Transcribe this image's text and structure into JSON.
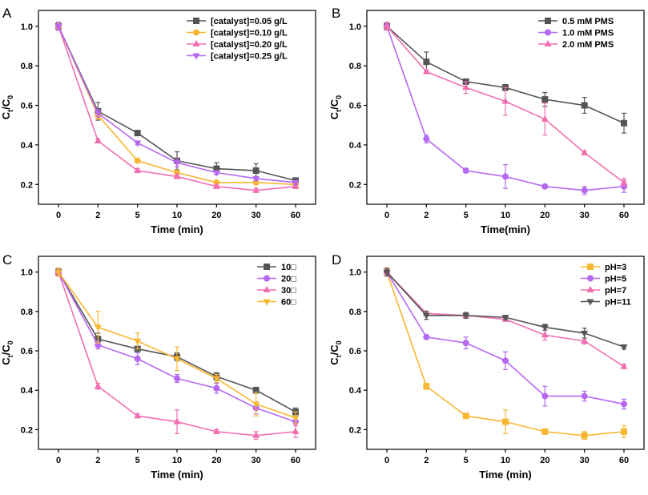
{
  "chart_data": [
    {
      "panel_label": "A",
      "type": "line",
      "xlabel": "Time (min)",
      "ylabel_main": "C",
      "ylabel_sub1": "t",
      "ylabel_mid": "/C",
      "ylabel_sub2": "0",
      "categories": [
        "0",
        "2",
        "5",
        "10",
        "20",
        "30",
        "60"
      ],
      "ylim": [
        0.1,
        1.08
      ],
      "yticks": [
        "0.2",
        "0.4",
        "0.6",
        "0.8",
        "1.0"
      ],
      "legend_position": "top-right",
      "series": [
        {
          "name": "[catalyst]=0.05 g/L",
          "color": "#555555",
          "marker": "square",
          "values": [
            1.0,
            0.57,
            0.46,
            0.32,
            0.28,
            0.27,
            0.22
          ],
          "errors": [
            0.02,
            0.045,
            0.01,
            0.045,
            0.03,
            0.035,
            0.01
          ]
        },
        {
          "name": "[catalyst]=0.10 g/L",
          "color": "#f7b733",
          "marker": "circle",
          "values": [
            1.0,
            0.55,
            0.32,
            0.26,
            0.21,
            0.21,
            0.2
          ],
          "errors": [
            0.02,
            0.02,
            0.01,
            0.01,
            0.01,
            0.01,
            0.01
          ]
        },
        {
          "name": "[catalyst]=0.20 g/L",
          "color": "#f06fb0",
          "marker": "triangle-up",
          "values": [
            1.0,
            0.42,
            0.27,
            0.24,
            0.19,
            0.17,
            0.19
          ],
          "errors": [
            0.02,
            0.01,
            0.01,
            0.01,
            0.01,
            0.01,
            0.01
          ]
        },
        {
          "name": "[catalyst]=0.25 g/L",
          "color": "#b668f0",
          "marker": "triangle-down",
          "values": [
            1.0,
            0.56,
            0.41,
            0.31,
            0.26,
            0.23,
            0.21
          ],
          "errors": [
            0.02,
            0.02,
            0.01,
            0.02,
            0.01,
            0.01,
            0.01
          ]
        }
      ]
    },
    {
      "panel_label": "B",
      "type": "line",
      "xlabel": "Time(min)",
      "ylabel_main": "C",
      "ylabel_sub1": "t",
      "ylabel_mid": "/C",
      "ylabel_sub2": "0",
      "categories": [
        "0",
        "2",
        "5",
        "10",
        "20",
        "30",
        "60"
      ],
      "ylim": [
        0.1,
        1.08
      ],
      "yticks": [
        "0.2",
        "0.4",
        "0.6",
        "0.8",
        "1.0"
      ],
      "legend_position": "top-right",
      "series": [
        {
          "name": "0.5 mM PMS",
          "color": "#555555",
          "marker": "square",
          "values": [
            1.0,
            0.82,
            0.72,
            0.69,
            0.63,
            0.6,
            0.51
          ],
          "errors": [
            0.02,
            0.05,
            0.01,
            0.015,
            0.035,
            0.04,
            0.05
          ]
        },
        {
          "name": "1.0 mM PMS",
          "color": "#b668f0",
          "marker": "circle",
          "values": [
            1.0,
            0.43,
            0.27,
            0.24,
            0.19,
            0.17,
            0.19
          ],
          "errors": [
            0.02,
            0.02,
            0.01,
            0.06,
            0.01,
            0.02,
            0.03
          ]
        },
        {
          "name": "2.0 mM PMS",
          "color": "#f06fb0",
          "marker": "triangle-up",
          "values": [
            1.0,
            0.77,
            0.69,
            0.62,
            0.53,
            0.36,
            0.21
          ],
          "errors": [
            0.02,
            0.01,
            0.03,
            0.07,
            0.08,
            0.01,
            0.02
          ]
        }
      ]
    },
    {
      "panel_label": "C",
      "type": "line",
      "xlabel": "Time (min)",
      "ylabel_main": "C",
      "ylabel_sub1": "t",
      "ylabel_mid": "/C",
      "ylabel_sub2": "0",
      "categories": [
        "0",
        "2",
        "5",
        "10",
        "20",
        "30",
        "60"
      ],
      "ylim": [
        0.1,
        1.08
      ],
      "yticks": [
        "0.2",
        "0.4",
        "0.6",
        "0.8",
        "1.0"
      ],
      "legend_position": "top-right",
      "series": [
        {
          "name": "10□",
          "color": "#555555",
          "marker": "square",
          "values": [
            1.0,
            0.66,
            0.61,
            0.57,
            0.47,
            0.4,
            0.29
          ],
          "errors": [
            0.02,
            0.03,
            0.01,
            0.02,
            0.02,
            0.015,
            0.02
          ]
        },
        {
          "name": "20□",
          "color": "#b668f0",
          "marker": "circle",
          "values": [
            1.0,
            0.63,
            0.56,
            0.46,
            0.41,
            0.31,
            0.24
          ],
          "errors": [
            0.02,
            0.02,
            0.03,
            0.02,
            0.025,
            0.03,
            0.02
          ]
        },
        {
          "name": "30□",
          "color": "#f06fb0",
          "marker": "triangle-up",
          "values": [
            1.0,
            0.42,
            0.27,
            0.24,
            0.19,
            0.17,
            0.19
          ],
          "errors": [
            0.02,
            0.015,
            0.01,
            0.06,
            0.01,
            0.02,
            0.03
          ]
        },
        {
          "name": "60□",
          "color": "#f7b733",
          "marker": "triangle-down",
          "values": [
            1.0,
            0.72,
            0.65,
            0.56,
            0.46,
            0.33,
            0.26
          ],
          "errors": [
            0.02,
            0.08,
            0.04,
            0.06,
            0.02,
            0.06,
            0.03
          ]
        }
      ]
    },
    {
      "panel_label": "D",
      "type": "line",
      "xlabel": "Time (min)",
      "ylabel_main": "C",
      "ylabel_sub1": "t",
      "ylabel_mid": "/C",
      "ylabel_sub2": "0",
      "categories": [
        "0",
        "2",
        "5",
        "10",
        "20",
        "30",
        "60"
      ],
      "ylim": [
        0.1,
        1.08
      ],
      "yticks": [
        "0.2",
        "0.4",
        "0.6",
        "0.8",
        "1.0"
      ],
      "legend_position": "top-right",
      "series": [
        {
          "name": "pH=3",
          "color": "#f7b733",
          "marker": "square",
          "values": [
            1.0,
            0.42,
            0.27,
            0.24,
            0.19,
            0.17,
            0.19
          ],
          "errors": [
            0.02,
            0.015,
            0.01,
            0.06,
            0.01,
            0.02,
            0.03
          ]
        },
        {
          "name": "pH=5",
          "color": "#b668f0",
          "marker": "circle",
          "values": [
            1.0,
            0.67,
            0.64,
            0.55,
            0.37,
            0.37,
            0.33
          ],
          "errors": [
            0.02,
            0.01,
            0.03,
            0.045,
            0.05,
            0.025,
            0.025
          ]
        },
        {
          "name": "pH=7",
          "color": "#f06fb0",
          "marker": "triangle-up",
          "values": [
            1.0,
            0.79,
            0.78,
            0.76,
            0.68,
            0.65,
            0.52
          ],
          "errors": [
            0.02,
            0.01,
            0.01,
            0.01,
            0.025,
            0.015,
            0.01
          ]
        },
        {
          "name": "pH=11",
          "color": "#555555",
          "marker": "triangle-down",
          "values": [
            1.0,
            0.78,
            0.78,
            0.77,
            0.72,
            0.69,
            0.62
          ],
          "errors": [
            0.02,
            0.02,
            0.015,
            0.01,
            0.015,
            0.025,
            0.01
          ]
        }
      ]
    }
  ]
}
